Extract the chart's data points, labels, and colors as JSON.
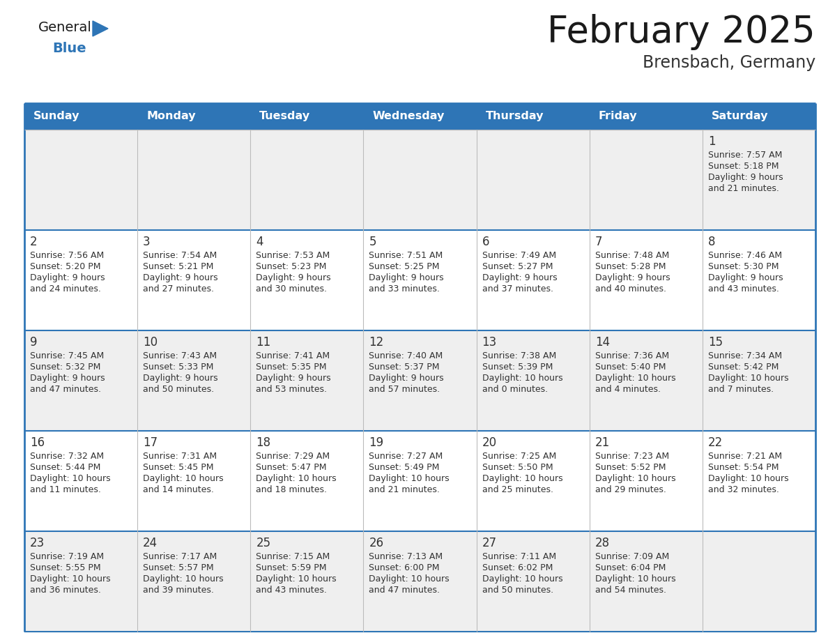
{
  "title": "February 2025",
  "subtitle": "Brensbach, Germany",
  "header_bg": "#2E75B6",
  "header_text_color": "#FFFFFF",
  "row_bg_odd": "#EFEFEF",
  "row_bg_even": "#FFFFFF",
  "border_color": "#2E75B6",
  "days_of_week": [
    "Sunday",
    "Monday",
    "Tuesday",
    "Wednesday",
    "Thursday",
    "Friday",
    "Saturday"
  ],
  "title_color": "#1a1a1a",
  "subtitle_color": "#333333",
  "cell_text_color": "#333333",
  "day_num_color": "#333333",
  "logo_general_color": "#1a1a1a",
  "logo_blue_color": "#2E75B6",
  "logo_triangle_color": "#2E75B6",
  "weeks": [
    [
      {
        "day": null,
        "sunrise": null,
        "sunset": null,
        "daylight": null
      },
      {
        "day": null,
        "sunrise": null,
        "sunset": null,
        "daylight": null
      },
      {
        "day": null,
        "sunrise": null,
        "sunset": null,
        "daylight": null
      },
      {
        "day": null,
        "sunrise": null,
        "sunset": null,
        "daylight": null
      },
      {
        "day": null,
        "sunrise": null,
        "sunset": null,
        "daylight": null
      },
      {
        "day": null,
        "sunrise": null,
        "sunset": null,
        "daylight": null
      },
      {
        "day": 1,
        "sunrise": "7:57 AM",
        "sunset": "5:18 PM",
        "daylight": "9 hours\nand 21 minutes."
      }
    ],
    [
      {
        "day": 2,
        "sunrise": "7:56 AM",
        "sunset": "5:20 PM",
        "daylight": "9 hours\nand 24 minutes."
      },
      {
        "day": 3,
        "sunrise": "7:54 AM",
        "sunset": "5:21 PM",
        "daylight": "9 hours\nand 27 minutes."
      },
      {
        "day": 4,
        "sunrise": "7:53 AM",
        "sunset": "5:23 PM",
        "daylight": "9 hours\nand 30 minutes."
      },
      {
        "day": 5,
        "sunrise": "7:51 AM",
        "sunset": "5:25 PM",
        "daylight": "9 hours\nand 33 minutes."
      },
      {
        "day": 6,
        "sunrise": "7:49 AM",
        "sunset": "5:27 PM",
        "daylight": "9 hours\nand 37 minutes."
      },
      {
        "day": 7,
        "sunrise": "7:48 AM",
        "sunset": "5:28 PM",
        "daylight": "9 hours\nand 40 minutes."
      },
      {
        "day": 8,
        "sunrise": "7:46 AM",
        "sunset": "5:30 PM",
        "daylight": "9 hours\nand 43 minutes."
      }
    ],
    [
      {
        "day": 9,
        "sunrise": "7:45 AM",
        "sunset": "5:32 PM",
        "daylight": "9 hours\nand 47 minutes."
      },
      {
        "day": 10,
        "sunrise": "7:43 AM",
        "sunset": "5:33 PM",
        "daylight": "9 hours\nand 50 minutes."
      },
      {
        "day": 11,
        "sunrise": "7:41 AM",
        "sunset": "5:35 PM",
        "daylight": "9 hours\nand 53 minutes."
      },
      {
        "day": 12,
        "sunrise": "7:40 AM",
        "sunset": "5:37 PM",
        "daylight": "9 hours\nand 57 minutes."
      },
      {
        "day": 13,
        "sunrise": "7:38 AM",
        "sunset": "5:39 PM",
        "daylight": "10 hours\nand 0 minutes."
      },
      {
        "day": 14,
        "sunrise": "7:36 AM",
        "sunset": "5:40 PM",
        "daylight": "10 hours\nand 4 minutes."
      },
      {
        "day": 15,
        "sunrise": "7:34 AM",
        "sunset": "5:42 PM",
        "daylight": "10 hours\nand 7 minutes."
      }
    ],
    [
      {
        "day": 16,
        "sunrise": "7:32 AM",
        "sunset": "5:44 PM",
        "daylight": "10 hours\nand 11 minutes."
      },
      {
        "day": 17,
        "sunrise": "7:31 AM",
        "sunset": "5:45 PM",
        "daylight": "10 hours\nand 14 minutes."
      },
      {
        "day": 18,
        "sunrise": "7:29 AM",
        "sunset": "5:47 PM",
        "daylight": "10 hours\nand 18 minutes."
      },
      {
        "day": 19,
        "sunrise": "7:27 AM",
        "sunset": "5:49 PM",
        "daylight": "10 hours\nand 21 minutes."
      },
      {
        "day": 20,
        "sunrise": "7:25 AM",
        "sunset": "5:50 PM",
        "daylight": "10 hours\nand 25 minutes."
      },
      {
        "day": 21,
        "sunrise": "7:23 AM",
        "sunset": "5:52 PM",
        "daylight": "10 hours\nand 29 minutes."
      },
      {
        "day": 22,
        "sunrise": "7:21 AM",
        "sunset": "5:54 PM",
        "daylight": "10 hours\nand 32 minutes."
      }
    ],
    [
      {
        "day": 23,
        "sunrise": "7:19 AM",
        "sunset": "5:55 PM",
        "daylight": "10 hours\nand 36 minutes."
      },
      {
        "day": 24,
        "sunrise": "7:17 AM",
        "sunset": "5:57 PM",
        "daylight": "10 hours\nand 39 minutes."
      },
      {
        "day": 25,
        "sunrise": "7:15 AM",
        "sunset": "5:59 PM",
        "daylight": "10 hours\nand 43 minutes."
      },
      {
        "day": 26,
        "sunrise": "7:13 AM",
        "sunset": "6:00 PM",
        "daylight": "10 hours\nand 47 minutes."
      },
      {
        "day": 27,
        "sunrise": "7:11 AM",
        "sunset": "6:02 PM",
        "daylight": "10 hours\nand 50 minutes."
      },
      {
        "day": 28,
        "sunrise": "7:09 AM",
        "sunset": "6:04 PM",
        "daylight": "10 hours\nand 54 minutes."
      },
      {
        "day": null,
        "sunrise": null,
        "sunset": null,
        "daylight": null
      }
    ]
  ]
}
